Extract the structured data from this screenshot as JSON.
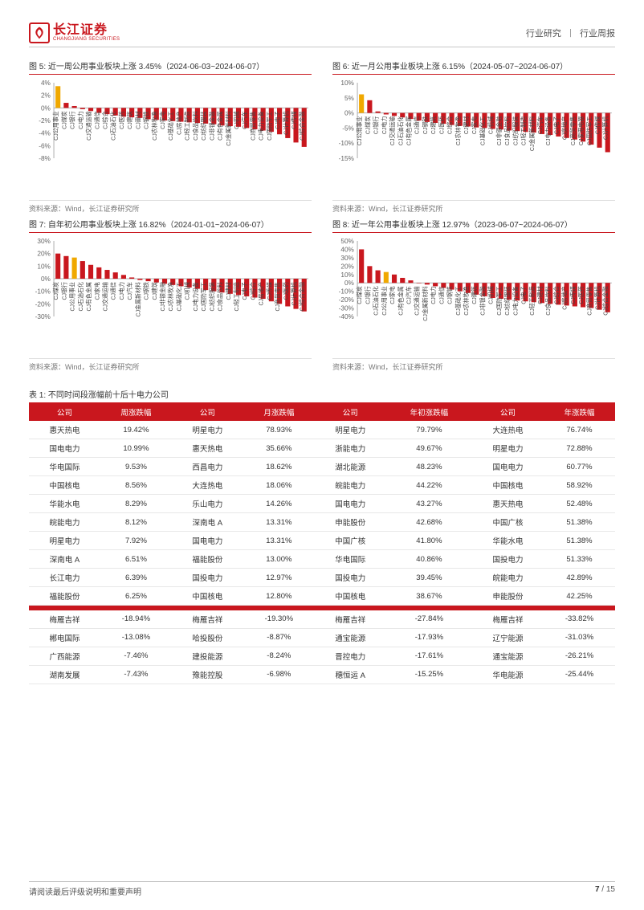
{
  "header": {
    "logo_cn": "长江证券",
    "logo_en": "CHANGJIANG SECURITIES",
    "right_a": "行业研究",
    "right_b": "行业周报"
  },
  "charts": [
    {
      "fig_label": "图 5:",
      "title": "近一周公用事业板块上涨 3.45%（2024-06-03~2024-06-07）",
      "categories": [
        "CJ公用事业",
        "CJ煤炭",
        "CJ银行",
        "CJ电力",
        "CJ交通运输",
        "CJ通信",
        "CJ综合",
        "CJ石油石化",
        "CJ医药",
        "CJ建筑",
        "CJ建材",
        "CJ钢铁",
        "CJ农林牧渔",
        "CJ家电",
        "CJ基础化工",
        "CJ房地产",
        "CJ轻工制造",
        "CJ食品饮料",
        "CJ纺织服装",
        "CJ非银金融",
        "CJ有色金属",
        "CJ金属新材料",
        "CJ机械",
        "CJ汽车",
        "CJ商贸零售",
        "CJ电力设备",
        "CJ国防军工",
        "CJ电子",
        "CJ计算机",
        "CJ传媒",
        "CJ综合金融"
      ],
      "values": [
        3.45,
        0.8,
        0.3,
        -0.2,
        -0.5,
        -0.8,
        -1.0,
        -1.2,
        -1.4,
        -1.5,
        -1.6,
        -1.8,
        -1.9,
        -2.0,
        -2.1,
        -2.2,
        -2.3,
        -2.4,
        -2.5,
        -2.6,
        -2.8,
        -2.9,
        -3.0,
        -3.2,
        -3.4,
        -3.6,
        -3.8,
        -4.2,
        -4.8,
        -5.5,
        -6.2
      ],
      "highlight_index": 0,
      "ylim": [
        -8,
        4
      ],
      "ytick_step": 2,
      "bar_color": "#c9171e",
      "highlight_color": "#f0a800",
      "grid_color": "#e8e8e8",
      "source": "资料来源：Wind，长江证券研究所"
    },
    {
      "fig_label": "图 6:",
      "title": "近一月公用事业板块上涨 6.15%（2024-05-07~2024-06-07）",
      "categories": [
        "CJ公用事业",
        "CJ煤炭",
        "CJ银行",
        "CJ电力",
        "CJ交通运输",
        "CJ石油石化",
        "CJ有色金属",
        "CJ通信",
        "CJ钢铁",
        "CJ建筑",
        "CJ医药",
        "CJ综合",
        "CJ农林牧渔",
        "CJ建材",
        "CJ家电",
        "CJ基础化工",
        "CJ机械",
        "CJ非银金融",
        "CJ食品饮料",
        "CJ纺织服装",
        "CJ轻工制造",
        "CJ金属新材料",
        "CJ汽车",
        "CJ电力设备",
        "CJ电子",
        "CJ房地产",
        "CJ商贸零售",
        "CJ家用电器",
        "CJ国防军工",
        "CJ传媒",
        "CJ计算机"
      ],
      "values": [
        6.15,
        4.2,
        0.5,
        -0.5,
        -1.0,
        -1.5,
        -2.0,
        -2.5,
        -3.0,
        -3.3,
        -3.6,
        -4.0,
        -4.3,
        -4.5,
        -4.8,
        -5.0,
        -5.3,
        -5.5,
        -5.8,
        -6.0,
        -6.3,
        -6.5,
        -7.0,
        -7.3,
        -7.8,
        -8.3,
        -8.8,
        -9.5,
        -10.5,
        -11.5,
        -13.0
      ],
      "highlight_index": 0,
      "ylim": [
        -15,
        10
      ],
      "ytick_step": 5,
      "bar_color": "#c9171e",
      "highlight_color": "#f0a800",
      "grid_color": "#e8e8e8",
      "source": "资料来源：Wind，长江证券研究所"
    },
    {
      "fig_label": "图 7:",
      "title": "自年初公用事业板块上涨 16.82%（2024-01-01~2024-06-07）",
      "categories": [
        "CJ煤炭",
        "CJ银行",
        "CJ公用事业",
        "CJ石油石化",
        "CJ有色金属",
        "CJ家电",
        "CJ交通运输",
        "CJ通信",
        "CJ电力",
        "CJ汽车",
        "CJ金属新材料",
        "CJ钢铁",
        "CJ建筑",
        "CJ非银金融",
        "CJ农林牧渔",
        "CJ基础化工",
        "CJ机械",
        "CJ电力设备",
        "CJ国防军工",
        "CJ纺织服装",
        "CJ食品饮料",
        "CJ建材",
        "CJ轻工制造",
        "CJ电子",
        "CJ综合",
        "CJ房地产",
        "CJ传媒",
        "CJ商贸零售",
        "CJ医药",
        "CJ计算机",
        "CJ综合金融"
      ],
      "values": [
        20,
        18,
        16.82,
        14,
        11,
        9,
        7,
        5,
        3,
        1,
        -1,
        -2,
        -3,
        -4,
        -5,
        -6,
        -7,
        -8,
        -9,
        -10,
        -11,
        -12,
        -13,
        -14,
        -15,
        -16,
        -18,
        -20,
        -22,
        -24,
        -26
      ],
      "highlight_index": 2,
      "ylim": [
        -30,
        30
      ],
      "ytick_step": 10,
      "bar_color": "#c9171e",
      "highlight_color": "#f0a800",
      "grid_color": "#e8e8e8",
      "source": "资料来源：Wind，长江证券研究所"
    },
    {
      "fig_label": "图 8:",
      "title": "近一年公用事业板块上涨 12.97%（2023-06-07~2024-06-07）",
      "categories": [
        "CJ煤炭",
        "CJ银行",
        "CJ石油石化",
        "CJ公用事业",
        "CJ家电",
        "CJ有色金属",
        "CJ汽车",
        "CJ交通运输",
        "CJ金属新材料",
        "CJ电力",
        "CJ通信",
        "CJ钢铁",
        "CJ基础化工",
        "CJ农林牧渔",
        "CJ建筑",
        "CJ非银金融",
        "CJ机械",
        "CJ国防军工",
        "CJ纺织服装",
        "CJ电力设备",
        "CJ电子",
        "CJ轻工制造",
        "CJ建材",
        "CJ食品饮料",
        "CJ综合",
        "CJ房地产",
        "CJ传媒",
        "CJ医药",
        "CJ商贸零售",
        "CJ计算机",
        "CJ综合金融"
      ],
      "values": [
        40,
        20,
        15,
        12.97,
        10,
        6,
        3,
        0,
        -2,
        -4,
        -6,
        -8,
        -10,
        -12,
        -14,
        -16,
        -18,
        -19,
        -20,
        -21,
        -22,
        -23,
        -24,
        -25,
        -26,
        -27,
        -28,
        -29,
        -30,
        -32,
        -35
      ],
      "highlight_index": 3,
      "ylim": [
        -40,
        50
      ],
      "ytick_step": 10,
      "bar_color": "#c9171e",
      "highlight_color": "#f0a800",
      "grid_color": "#e8e8e8",
      "source": "资料来源：Wind，长江证券研究所"
    }
  ],
  "table": {
    "title": "表 1:  不同时间段涨幅前十后十电力公司",
    "columns": [
      "公司",
      "周涨跌幅",
      "公司",
      "月涨跌幅",
      "公司",
      "年初涨跌幅",
      "公司",
      "年涨跌幅"
    ],
    "rows_top": [
      [
        "惠天热电",
        "19.42%",
        "明星电力",
        "78.93%",
        "明星电力",
        "79.79%",
        "大连热电",
        "76.74%"
      ],
      [
        "国电电力",
        "10.99%",
        "惠天热电",
        "35.66%",
        "浙能电力",
        "49.67%",
        "明星电力",
        "72.88%"
      ],
      [
        "华电国际",
        "9.53%",
        "西昌电力",
        "18.62%",
        "湖北能源",
        "48.23%",
        "国电电力",
        "60.77%"
      ],
      [
        "中国核电",
        "8.56%",
        "大连热电",
        "18.06%",
        "皖能电力",
        "44.22%",
        "中国核电",
        "58.92%"
      ],
      [
        "华能水电",
        "8.29%",
        "乐山电力",
        "14.26%",
        "国电电力",
        "43.27%",
        "惠天热电",
        "52.48%"
      ],
      [
        "皖能电力",
        "8.12%",
        "深南电 A",
        "13.31%",
        "申能股份",
        "42.68%",
        "中国广核",
        "51.38%"
      ],
      [
        "明星电力",
        "7.92%",
        "国电电力",
        "13.31%",
        "中国广核",
        "41.80%",
        "华能水电",
        "51.38%"
      ],
      [
        "深南电 A",
        "6.51%",
        "福能股份",
        "13.00%",
        "华电国际",
        "40.86%",
        "国投电力",
        "51.33%"
      ],
      [
        "长江电力",
        "6.39%",
        "国投电力",
        "12.97%",
        "国投电力",
        "39.45%",
        "皖能电力",
        "42.89%"
      ],
      [
        "福能股份",
        "6.25%",
        "中国核电",
        "12.80%",
        "中国核电",
        "38.67%",
        "申能股份",
        "42.25%"
      ]
    ],
    "rows_bottom": [
      [
        "梅雁吉祥",
        "-18.94%",
        "梅雁吉祥",
        "-19.30%",
        "梅雁吉祥",
        "-27.84%",
        "梅雁吉祥",
        "-33.82%"
      ],
      [
        "郴电国际",
        "-13.08%",
        "哈投股份",
        "-8.87%",
        "通宝能源",
        "-17.93%",
        "辽宁能源",
        "-31.03%"
      ],
      [
        "广西能源",
        "-7.46%",
        "建投能源",
        "-8.24%",
        "晋控电力",
        "-17.61%",
        "通宝能源",
        "-26.21%"
      ],
      [
        "湖南发展",
        "-7.43%",
        "豫能控股",
        "-6.98%",
        "穗恒运 A",
        "-15.25%",
        "华电能源",
        "-25.44%"
      ]
    ]
  },
  "footer": {
    "disclaimer": "请阅读最后评级说明和重要声明",
    "page_current": "7",
    "page_sep": " / ",
    "page_total": "15"
  },
  "style": {
    "accent": "#c9171e",
    "highlight": "#f0a800"
  }
}
